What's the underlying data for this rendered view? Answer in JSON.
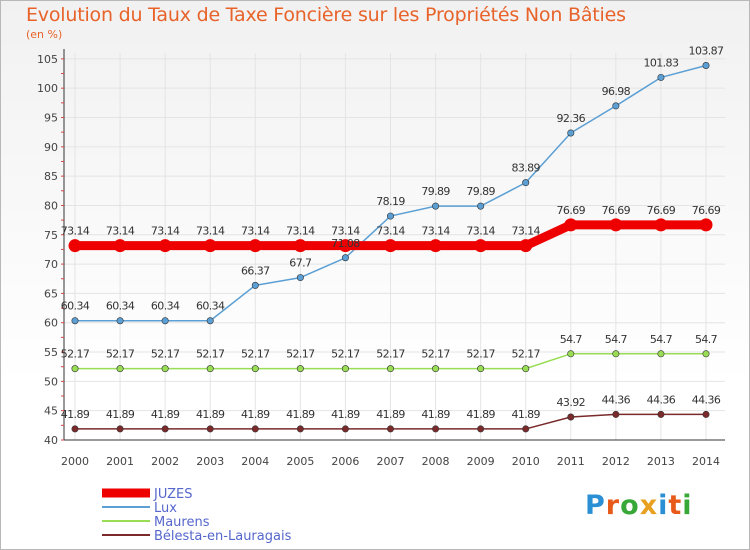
{
  "chart_data": {
    "type": "line",
    "title": "Evolution du Taux de Taxe Foncière sur les Propriétés Non Bâties",
    "unit_label": "(en %)",
    "xlabel": "",
    "ylabel": "",
    "ylim": [
      40,
      106
    ],
    "y_ticks": [
      40,
      45,
      50,
      55,
      60,
      65,
      70,
      75,
      80,
      85,
      90,
      95,
      100,
      105
    ],
    "categories": [
      "2000",
      "2001",
      "2002",
      "2003",
      "2004",
      "2005",
      "2006",
      "2007",
      "2008",
      "2009",
      "2010",
      "2011",
      "2012",
      "2013",
      "2014"
    ],
    "series": [
      {
        "name": "JUZES",
        "color": "#ee0000",
        "emphasis": true,
        "values": [
          73.14,
          73.14,
          73.14,
          73.14,
          73.14,
          73.14,
          73.14,
          73.14,
          73.14,
          73.14,
          73.14,
          76.69,
          76.69,
          76.69,
          76.69
        ],
        "labels": [
          "73.14",
          "73.14",
          "73.14",
          "73.14",
          "73.14",
          "73.14",
          "73.14",
          "73.14",
          "73.14",
          "73.14",
          "73.14",
          "76.69",
          "76.69",
          "76.69",
          "76.69"
        ]
      },
      {
        "name": "Lux",
        "color": "#5b9fd4",
        "emphasis": false,
        "values": [
          60.34,
          60.34,
          60.34,
          60.34,
          66.37,
          67.7,
          71.08,
          78.19,
          79.89,
          79.89,
          83.89,
          92.36,
          96.98,
          101.83,
          103.87
        ],
        "labels": [
          "60.34",
          "60.34",
          "60.34",
          "60.34",
          "66.37",
          "67.7",
          "71.08",
          "78.19",
          "79.89",
          "79.89",
          "83.89",
          "92.36",
          "96.98",
          "101.83",
          "103.87"
        ]
      },
      {
        "name": "Maurens",
        "color": "#99dd55",
        "emphasis": false,
        "values": [
          52.17,
          52.17,
          52.17,
          52.17,
          52.17,
          52.17,
          52.17,
          52.17,
          52.17,
          52.17,
          52.17,
          54.7,
          54.7,
          54.7,
          54.7
        ],
        "labels": [
          "52.17",
          "52.17",
          "52.17",
          "52.17",
          "52.17",
          "52.17",
          "52.17",
          "52.17",
          "52.17",
          "52.17",
          "52.17",
          "54.7",
          "54.7",
          "54.7",
          "54.7"
        ]
      },
      {
        "name": "Bélesta-en-Lauragais",
        "color": "#7a2a2a",
        "emphasis": false,
        "values": [
          41.89,
          41.89,
          41.89,
          41.89,
          41.89,
          41.89,
          41.89,
          41.89,
          41.89,
          41.89,
          41.89,
          43.92,
          44.36,
          44.36,
          44.36
        ],
        "labels": [
          "41.89",
          "41.89",
          "41.89",
          "41.89",
          "41.89",
          "41.89",
          "41.89",
          "41.89",
          "41.89",
          "41.89",
          "41.89",
          "43.92",
          "44.36",
          "44.36",
          "44.36"
        ]
      }
    ],
    "legend_position": "bottom-left"
  },
  "branding": {
    "logo_text": "Proxiti"
  }
}
